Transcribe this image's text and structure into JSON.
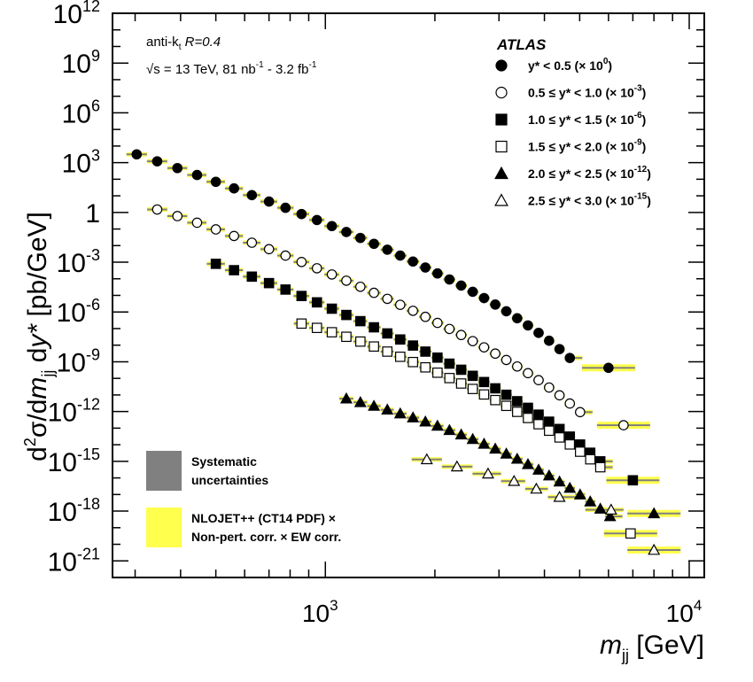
{
  "chart_data": {
    "type": "scatter",
    "xlabel": "m_jj [GeV]",
    "ylabel": "d²σ/dm_jj dy* [pb/GeV]",
    "xscale": "log",
    "yscale": "log",
    "xlim": [
      260,
      11000
    ],
    "ylim": [
      1e-22,
      1000000000000.0
    ],
    "x_tick_labels": [
      {
        "base": "10",
        "exp": "3",
        "value": 1000
      },
      {
        "base": "10",
        "exp": "4",
        "value": 10000
      }
    ],
    "y_tick_labels": [
      {
        "base": "10",
        "exp": "12",
        "value": 1000000000000.0
      },
      {
        "base": "10",
        "exp": "9",
        "value": 1000000000.0
      },
      {
        "base": "10",
        "exp": "6",
        "value": 1000000.0
      },
      {
        "base": "10",
        "exp": "3",
        "value": 1000.0
      },
      {
        "base": "1",
        "exp": "",
        "value": 1
      },
      {
        "base": "10",
        "exp": "-3",
        "value": 0.001
      },
      {
        "base": "10",
        "exp": "-6",
        "value": 1e-06
      },
      {
        "base": "10",
        "exp": "-9",
        "value": 1e-09
      },
      {
        "base": "10",
        "exp": "-12",
        "value": 1e-12
      },
      {
        "base": "10",
        "exp": "-15",
        "value": 1e-15
      },
      {
        "base": "10",
        "exp": "-18",
        "value": 1e-18
      },
      {
        "base": "10",
        "exp": "-21",
        "value": 1e-21
      }
    ],
    "annotations": {
      "jet_algo": "anti-k",
      "jet_algo_sub": "t",
      "radius": "R=0.4",
      "sqrt_s": "√s = 13 TeV,  81 nb",
      "lumi_mid": " - 3.2 fb",
      "lumi_exp": "-1",
      "experiment": "ATLAS"
    },
    "legend": {
      "position": "top-right",
      "entries": [
        {
          "text": "y* < 0.5 (× 10",
          "exp": "0",
          "marker": "circle",
          "filled": true
        },
        {
          "text": "0.5 ≤ y* < 1.0 (× 10",
          "exp": "-3",
          "marker": "circle",
          "filled": false
        },
        {
          "text": "1.0 ≤ y* < 1.5 (× 10",
          "exp": "-6",
          "marker": "square",
          "filled": true
        },
        {
          "text": "1.5 ≤ y* < 2.0 (× 10",
          "exp": "-9",
          "marker": "square",
          "filled": false
        },
        {
          "text": "2.0 ≤ y* < 2.5 (× 10",
          "exp": "-12",
          "marker": "triangle",
          "filled": true
        },
        {
          "text": "2.5 ≤ y* < 3.0 (× 10",
          "exp": "-15",
          "marker": "triangle",
          "filled": false
        }
      ]
    },
    "bottom_legend": [
      {
        "line1": "Systematic",
        "line2": "uncertainties",
        "color": "#808080"
      },
      {
        "line1": "NLOJET++ (CT14 PDF) ×",
        "line2": "Non-pert. corr. × EW corr.",
        "color": "#ffff4d"
      }
    ],
    "series": [
      {
        "name": "y* < 0.5 (× 10^0)",
        "marker": "circle",
        "filled": true,
        "x": [
          303,
          345,
          392,
          444,
          500,
          561,
          628,
          700,
          777,
          860,
          948,
          1042,
          1142,
          1248,
          1360,
          1480,
          1606,
          1741,
          1883,
          2033,
          2193,
          2362,
          2541,
          2730,
          2931,
          3143,
          3367,
          3604,
          3855,
          4120,
          4401,
          4698,
          6000
        ],
        "y": [
          3160,
          1200,
          470,
          180,
          70,
          28,
          11,
          4.5,
          1.9,
          0.8,
          0.35,
          0.15,
          0.066,
          0.029,
          0.0128,
          0.0057,
          0.0025,
          0.0011,
          0.00048,
          0.00021,
          9.1e-05,
          3.9e-05,
          1.65e-05,
          6.9e-06,
          2.8e-06,
          1.1e-06,
          4.2e-07,
          1.55e-07,
          5.5e-08,
          1.85e-08,
          5.8e-09,
          1.7e-09,
          4.3e-10
        ]
      },
      {
        "name": "0.5 ≤ y* < 1.0 (× 10^-3)",
        "marker": "circle",
        "filled": false,
        "x": [
          345,
          392,
          444,
          500,
          561,
          628,
          700,
          777,
          860,
          948,
          1042,
          1142,
          1248,
          1360,
          1480,
          1606,
          1741,
          1883,
          2033,
          2193,
          2362,
          2541,
          2730,
          2931,
          3143,
          3367,
          3604,
          3855,
          4120,
          4401,
          4698,
          5013,
          6600
        ],
        "y": [
          1.5,
          0.6,
          0.24,
          0.095,
          0.038,
          0.015,
          0.0061,
          0.0025,
          0.00103,
          0.00043,
          0.000182,
          7.7e-05,
          3.3e-05,
          1.43e-05,
          6.2e-06,
          2.7e-06,
          1.18e-06,
          5.1e-07,
          2.2e-07,
          9.5e-08,
          4.1e-08,
          1.75e-08,
          7.4e-09,
          3.1e-09,
          1.28e-09,
          5.2e-10,
          2.05e-10,
          7.8e-11,
          2.8e-11,
          9.5e-12,
          3.05e-12,
          9.2e-13,
          1.5e-13
        ]
      },
      {
        "name": "1.0 ≤ y* < 1.5 (× 10^-6)",
        "marker": "square",
        "filled": true,
        "x": [
          500,
          561,
          628,
          700,
          777,
          860,
          948,
          1042,
          1142,
          1248,
          1360,
          1480,
          1606,
          1741,
          1883,
          2033,
          2193,
          2362,
          2541,
          2730,
          2931,
          3143,
          3367,
          3604,
          3855,
          4120,
          4401,
          4698,
          5013,
          5346,
          5697,
          7000
        ],
        "y": [
          0.0008,
          0.00033,
          0.000135,
          5.5e-05,
          2.25e-05,
          9.2e-06,
          3.8e-06,
          1.58e-06,
          6.6e-07,
          2.8e-07,
          1.19e-07,
          5.1e-08,
          2.2e-08,
          9.5e-09,
          4.1e-09,
          1.78e-09,
          7.7e-10,
          3.3e-10,
          1.42e-10,
          6e-11,
          2.5e-11,
          1.03e-11,
          4.2e-12,
          1.68e-12,
          6.5e-13,
          2.45e-13,
          8.9e-14,
          3.1e-14,
          1.03e-14,
          3.3e-15,
          1e-15,
          7.2e-17
        ]
      },
      {
        "name": "1.5 ≤ y* < 2.0 (× 10^-9)",
        "marker": "square",
        "filled": false,
        "x": [
          860,
          948,
          1042,
          1142,
          1248,
          1360,
          1480,
          1606,
          1741,
          1883,
          2033,
          2193,
          2362,
          2541,
          2730,
          2931,
          3143,
          3367,
          3604,
          3855,
          4120,
          4401,
          4698,
          5013,
          5346,
          5697,
          6900
        ],
        "y": [
          2e-07,
          1.1e-07,
          6e-08,
          3.2e-08,
          1.65e-08,
          8.3e-09,
          4.1e-09,
          2e-09,
          9.6e-10,
          4.6e-10,
          2.2e-10,
          1.04e-10,
          4.9e-11,
          2.3e-11,
          1.07e-11,
          4.9e-12,
          2.2e-12,
          9.6e-13,
          4.1e-13,
          1.72e-13,
          7e-14,
          2.75e-14,
          1.04e-14,
          3.8e-15,
          1.32e-15,
          4.4e-16,
          4.5e-20
        ]
      },
      {
        "name": "2.0 ≤ y* < 2.5 (× 10^-12)",
        "marker": "triangle",
        "filled": true,
        "x": [
          1142,
          1248,
          1360,
          1480,
          1606,
          1741,
          1883,
          2033,
          2193,
          2362,
          2541,
          2730,
          2931,
          3143,
          3367,
          3604,
          3855,
          4120,
          4401,
          4698,
          5013,
          5346,
          5697,
          6059,
          8000
        ],
        "y": [
          6e-12,
          3.6e-12,
          2.15e-12,
          1.28e-12,
          7.5e-13,
          4.3e-13,
          2.45e-13,
          1.37e-13,
          7.5e-14,
          4.05e-14,
          2.15e-14,
          1.12e-14,
          5.7e-15,
          2.85e-15,
          1.39e-15,
          6.6e-16,
          3.05e-16,
          1.37e-16,
          5.9e-17,
          2.45e-17,
          9.8e-18,
          3.75e-18,
          1.37e-18,
          4.8e-19,
          7.2e-19
        ]
      },
      {
        "name": "2.5 ≤ y* < 3.0 (× 10^-15)",
        "marker": "triangle",
        "filled": false,
        "x": [
          1900,
          2300,
          2800,
          3300,
          3800,
          4400,
          6100,
          8000
        ],
        "y": [
          1.3e-15,
          4.8e-16,
          1.8e-16,
          6.4e-17,
          2.2e-17,
          7e-18,
          1.2e-18,
          4.5e-21
        ]
      }
    ]
  }
}
